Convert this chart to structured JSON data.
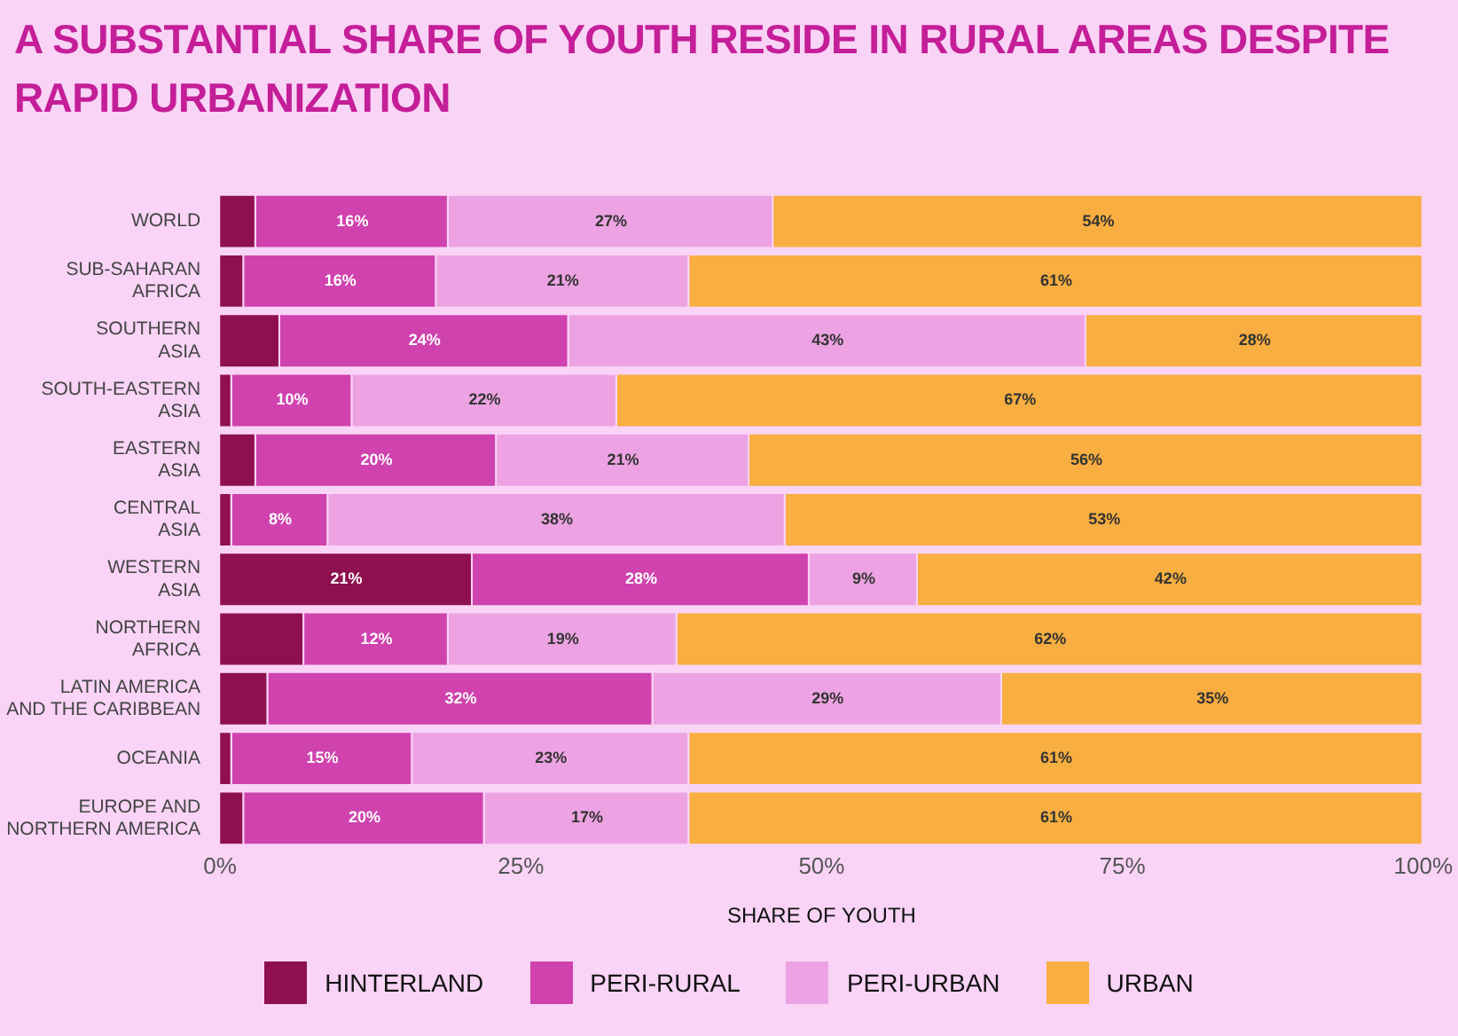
{
  "chart_data": {
    "type": "bar",
    "orientation": "horizontal",
    "stacked": true,
    "title": "A SUBSTANTIAL SHARE OF YOUTH RESIDE IN RURAL AREAS DESPITE RAPID URBANIZATION",
    "xlabel": "SHARE OF YOUTH",
    "categories": [
      "WORLD",
      "SUB-SAHARAN\nAFRICA",
      "SOUTHERN\nASIA",
      "SOUTH-EASTERN\nASIA",
      "EASTERN\nASIA",
      "CENTRAL\nASIA",
      "WESTERN\nASIA",
      "NORTHERN\nAFRICA",
      "LATIN AMERICA\nAND THE CARIBBEAN",
      "OCEANIA",
      "EUROPE AND\nNORTHERN AMERICA"
    ],
    "series": [
      {
        "name": "HINTERLAND",
        "color": "#8e104e",
        "values": [
          3,
          2,
          5,
          1,
          3,
          1,
          21,
          7,
          4,
          1,
          2
        ],
        "value_labels": [
          null,
          null,
          null,
          null,
          null,
          null,
          "21%",
          null,
          null,
          null,
          null
        ]
      },
      {
        "name": "PERI-RURAL",
        "color": "#d042ae",
        "values": [
          16,
          16,
          24,
          10,
          20,
          8,
          28,
          12,
          32,
          15,
          20
        ],
        "value_labels": [
          "16%",
          "16%",
          "24%",
          "10%",
          "20%",
          "8%",
          "28%",
          "12%",
          "32%",
          "15%",
          "20%"
        ]
      },
      {
        "name": "PERI-URBAN",
        "color": "#eda3e3",
        "values": [
          27,
          21,
          43,
          22,
          21,
          38,
          9,
          19,
          29,
          23,
          17
        ],
        "value_labels": [
          "27%",
          "21%",
          "43%",
          "22%",
          "21%",
          "38%",
          "9%",
          "19%",
          "29%",
          "23%",
          "17%"
        ]
      },
      {
        "name": "URBAN",
        "color": "#f8ae40",
        "values": [
          54,
          61,
          28,
          67,
          56,
          53,
          42,
          62,
          35,
          61,
          61
        ],
        "value_labels": [
          "54%",
          "61%",
          "28%",
          "67%",
          "56%",
          "53%",
          "42%",
          "62%",
          "35%",
          "61%",
          "61%"
        ]
      }
    ],
    "xlim": [
      0,
      100
    ],
    "xticks": [
      {
        "value": 0,
        "label": "0%"
      },
      {
        "value": 25,
        "label": "25%"
      },
      {
        "value": 50,
        "label": "50%"
      },
      {
        "value": 75,
        "label": "75%"
      },
      {
        "value": 100,
        "label": "100%"
      }
    ],
    "grid": false,
    "legend": "bottom"
  }
}
